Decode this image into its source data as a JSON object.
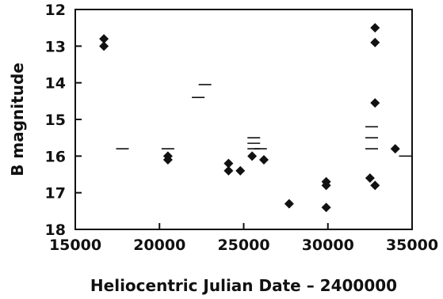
{
  "chart_data": {
    "type": "scatter",
    "title": "",
    "xlabel": "Heliocentric Julian Date – 2400000",
    "ylabel": "B magnitude",
    "xlim": [
      15000,
      35000
    ],
    "ylim": [
      12,
      18
    ],
    "y_inverted": true,
    "grid": false,
    "x_ticks": [
      "15000",
      "20000",
      "25000",
      "30000",
      "35000"
    ],
    "y_ticks": [
      "12",
      "13",
      "14",
      "15",
      "16",
      "17",
      "18"
    ],
    "series": [
      {
        "marker": "diamond",
        "color": "#111111",
        "points": [
          [
            16700,
            12.8
          ],
          [
            16700,
            13.0
          ],
          [
            20500,
            16.0
          ],
          [
            20500,
            16.1
          ],
          [
            24100,
            16.2
          ],
          [
            24100,
            16.4
          ],
          [
            24800,
            16.4
          ],
          [
            25500,
            16.0
          ],
          [
            26200,
            16.1
          ],
          [
            27700,
            17.3
          ],
          [
            29900,
            16.7
          ],
          [
            29900,
            16.8
          ],
          [
            29900,
            17.4
          ],
          [
            32500,
            16.6
          ],
          [
            32800,
            12.5
          ],
          [
            32800,
            12.9
          ],
          [
            32800,
            14.55
          ],
          [
            32800,
            16.8
          ],
          [
            34000,
            15.8
          ]
        ]
      },
      {
        "marker": "dash",
        "color": "#111111",
        "note_visible": "upper limits",
        "points": [
          [
            17800,
            15.8
          ],
          [
            20500,
            15.8
          ],
          [
            22300,
            14.4
          ],
          [
            22700,
            14.05
          ],
          [
            25600,
            15.5
          ],
          [
            25600,
            15.65
          ],
          [
            25600,
            15.8
          ],
          [
            26000,
            15.8
          ],
          [
            32600,
            15.2
          ],
          [
            32600,
            15.5
          ],
          [
            32600,
            15.8
          ],
          [
            34600,
            16.0
          ]
        ]
      }
    ]
  }
}
